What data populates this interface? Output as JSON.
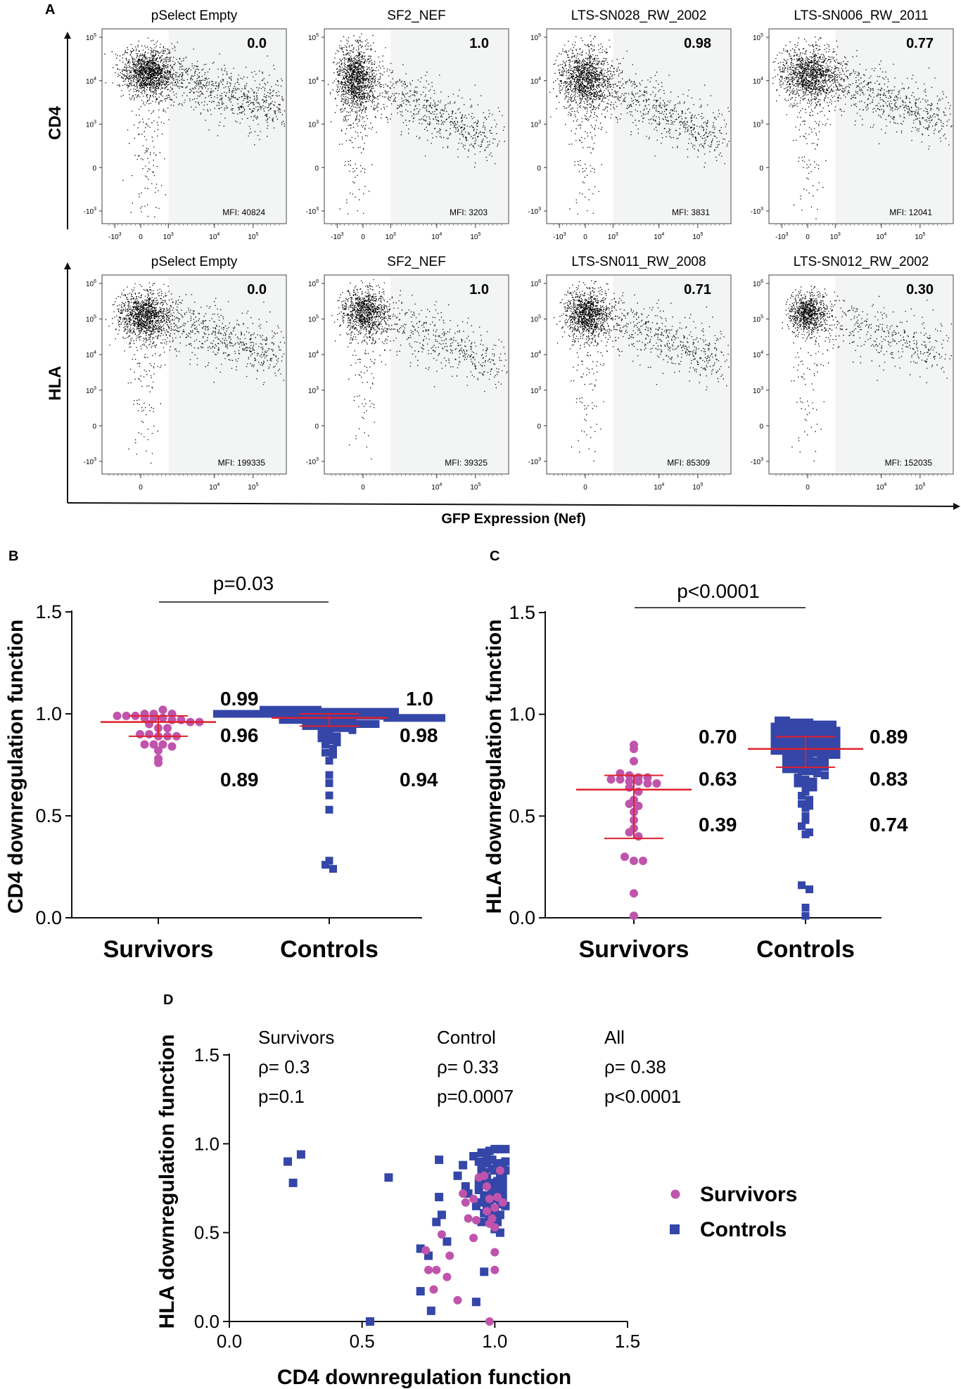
{
  "panels": {
    "A": "A",
    "B": "B",
    "C": "C",
    "D": "D"
  },
  "panel_a": {
    "row_axis_labels": [
      "CD4",
      "HLA"
    ],
    "x_axis_label": "GFP Expression (Nef)",
    "cd4_y_ticks": [
      "10^5",
      "10^4",
      "10^3",
      "0",
      "-10^3"
    ],
    "hla_y_ticks": [
      "10^6",
      "10^5",
      "10^4",
      "10^3",
      "0",
      "-10^3"
    ],
    "cd4_x_ticks": [
      "-10^3",
      "0",
      "10^3",
      "10^4",
      "10^5"
    ],
    "hla_x_ticks": [
      "0",
      "10^4",
      "10^5"
    ],
    "cd4_plots": [
      {
        "title": "pSelect Empty",
        "score": "0.0",
        "mfi": "MFI: 40824"
      },
      {
        "title": "SF2_NEF",
        "score": "1.0",
        "mfi": "MFI: 3203"
      },
      {
        "title": "LTS-SN028_RW_2002",
        "score": "0.98",
        "mfi": "MFI: 3831"
      },
      {
        "title": "LTS-SN006_RW_2011",
        "score": "0.77",
        "mfi": "MFI: 12041"
      }
    ],
    "hla_plots": [
      {
        "title": "pSelect Empty",
        "score": "0.0",
        "mfi": "MFI: 199335"
      },
      {
        "title": "SF2_NEF",
        "score": "1.0",
        "mfi": "MFI: 39325"
      },
      {
        "title": "LTS-SN011_RW_2008",
        "score": "0.71",
        "mfi": "MFI: 85309"
      },
      {
        "title": "LTS-SN012_RW_2002",
        "score": "0.30",
        "mfi": "MFI: 152035"
      }
    ]
  },
  "colors": {
    "survivors": "#c054ac",
    "controls": "#3446a8",
    "median_line": "#e0202a",
    "gate": "#f3f5f4"
  },
  "chart_data": [
    {
      "panel": "B",
      "type": "scatter",
      "ylabel": "CD4 downregulation function",
      "ylim": [
        0,
        1.5
      ],
      "yticks": [
        "0.0",
        "0.5",
        "1.0",
        "1.5"
      ],
      "categories": [
        "Survivors",
        "Controls"
      ],
      "pvalue": "p=0.03",
      "series": [
        {
          "name": "Survivors",
          "marker": "circle",
          "median": 0.96,
          "q1": 0.89,
          "q3": 0.99,
          "stat_labels": [
            "0.99",
            "0.96",
            "0.89"
          ],
          "values": [
            1.0,
            1.0,
            0.99,
            0.99,
            0.99,
            0.98,
            0.98,
            0.98,
            0.97,
            0.97,
            1.02,
            1.0,
            0.96,
            0.96,
            0.95,
            0.93,
            0.93,
            0.9,
            0.9,
            0.89,
            0.89,
            0.89,
            0.85,
            0.85,
            0.85,
            0.84,
            0.82,
            0.78,
            0.76
          ]
        },
        {
          "name": "Controls",
          "marker": "square",
          "median": 0.98,
          "q1": 0.94,
          "q3": 1.0,
          "stat_labels": [
            "1.0",
            "0.98",
            "0.94"
          ],
          "values": [
            1.02,
            1.02,
            1.02,
            1.02,
            1.02,
            1.02,
            1.02,
            1.02,
            1.01,
            1.01,
            1.01,
            1.01,
            1.01,
            1.01,
            1.01,
            1.01,
            1.01,
            1.01,
            1.0,
            1.0,
            1.0,
            1.0,
            1.0,
            1.0,
            1.0,
            1.0,
            1.0,
            1.0,
            1.0,
            1.0,
            0.99,
            0.99,
            0.99,
            0.99,
            0.99,
            0.99,
            0.99,
            0.99,
            0.99,
            0.99,
            0.98,
            0.98,
            0.98,
            0.98,
            0.98,
            0.98,
            0.98,
            0.98,
            0.97,
            0.97,
            0.97,
            0.97,
            0.97,
            0.97,
            0.96,
            0.96,
            0.96,
            0.96,
            0.95,
            0.95,
            0.95,
            0.94,
            0.94,
            0.94,
            0.93,
            0.93,
            0.93,
            0.92,
            0.91,
            0.9,
            0.89,
            0.88,
            0.87,
            0.86,
            0.85,
            0.83,
            0.81,
            0.8,
            0.77,
            0.7,
            0.66,
            0.6,
            0.53,
            0.28,
            0.26,
            0.24
          ]
        }
      ]
    },
    {
      "panel": "C",
      "type": "scatter",
      "ylabel": "HLA downregulation function",
      "ylim": [
        0,
        1.5
      ],
      "yticks": [
        "0.0",
        "0.5",
        "1.0",
        "1.5"
      ],
      "categories": [
        "Survivors",
        "Controls"
      ],
      "pvalue": "p<0.0001",
      "series": [
        {
          "name": "Survivors",
          "marker": "circle",
          "median": 0.63,
          "q1": 0.39,
          "q3": 0.7,
          "stat_labels": [
            "0.70",
            "0.63",
            "0.39"
          ],
          "values": [
            0.85,
            0.83,
            0.77,
            0.71,
            0.7,
            0.69,
            0.69,
            0.68,
            0.68,
            0.67,
            0.67,
            0.66,
            0.66,
            0.64,
            0.62,
            0.58,
            0.56,
            0.55,
            0.52,
            0.48,
            0.44,
            0.42,
            0.4,
            0.3,
            0.28,
            0.28,
            0.12,
            0.01
          ]
        },
        {
          "name": "Controls",
          "marker": "square",
          "median": 0.83,
          "q1": 0.74,
          "q3": 0.89,
          "stat_labels": [
            "0.89",
            "0.83",
            "0.74"
          ],
          "values": [
            0.97,
            0.97,
            0.96,
            0.96,
            0.96,
            0.95,
            0.95,
            0.95,
            0.94,
            0.94,
            0.94,
            0.93,
            0.93,
            0.93,
            0.92,
            0.92,
            0.92,
            0.91,
            0.91,
            0.91,
            0.9,
            0.9,
            0.9,
            0.89,
            0.89,
            0.89,
            0.88,
            0.88,
            0.88,
            0.87,
            0.87,
            0.87,
            0.86,
            0.86,
            0.86,
            0.85,
            0.85,
            0.85,
            0.84,
            0.84,
            0.84,
            0.83,
            0.83,
            0.83,
            0.82,
            0.82,
            0.82,
            0.81,
            0.81,
            0.81,
            0.8,
            0.8,
            0.8,
            0.79,
            0.79,
            0.78,
            0.78,
            0.77,
            0.77,
            0.76,
            0.76,
            0.75,
            0.75,
            0.74,
            0.74,
            0.73,
            0.73,
            0.72,
            0.72,
            0.71,
            0.7,
            0.69,
            0.68,
            0.67,
            0.66,
            0.65,
            0.64,
            0.62,
            0.6,
            0.58,
            0.56,
            0.55,
            0.54,
            0.5,
            0.48,
            0.45,
            0.42,
            0.41,
            0.16,
            0.14,
            0.05,
            0.01
          ]
        }
      ]
    },
    {
      "panel": "D",
      "type": "scatter",
      "xlabel": "CD4 downregulation function",
      "ylabel": "HLA downregulation function",
      "xlim": [
        0,
        1.5
      ],
      "ylim": [
        0,
        1.5
      ],
      "xticks": [
        "0.0",
        "0.5",
        "1.0",
        "1.5"
      ],
      "yticks": [
        "0.0",
        "0.5",
        "1.0",
        "1.5"
      ],
      "legend": [
        "Survivors",
        "Controls"
      ],
      "annotations": [
        {
          "title": "Survivors",
          "rho": "ρ= 0.3",
          "p": "p=0.1"
        },
        {
          "title": "Control",
          "rho": "ρ= 0.33",
          "p": "p=0.0007"
        },
        {
          "title": "All",
          "rho": "ρ= 0.38",
          "p": "p<0.0001"
        }
      ],
      "series": [
        {
          "name": "Controls",
          "marker": "square",
          "points": [
            [
              0.22,
              0.9
            ],
            [
              0.27,
              0.94
            ],
            [
              0.24,
              0.78
            ],
            [
              0.6,
              0.81
            ],
            [
              0.53,
              0.0
            ],
            [
              0.79,
              0.91
            ],
            [
              0.72,
              0.41
            ],
            [
              0.75,
              0.37
            ],
            [
              0.76,
              0.06
            ],
            [
              0.72,
              0.17
            ],
            [
              0.79,
              0.7
            ],
            [
              0.8,
              0.6
            ],
            [
              0.78,
              0.56
            ],
            [
              0.82,
              0.45
            ],
            [
              0.88,
              0.88
            ],
            [
              0.86,
              0.82
            ],
            [
              0.89,
              0.76
            ],
            [
              0.9,
              0.72
            ],
            [
              0.93,
              0.65
            ],
            [
              0.95,
              0.56
            ],
            [
              0.96,
              0.28
            ],
            [
              0.93,
              0.11
            ],
            [
              0.92,
              0.93
            ],
            [
              0.94,
              0.9
            ],
            [
              0.95,
              0.87
            ],
            [
              0.96,
              0.84
            ],
            [
              0.97,
              0.81
            ],
            [
              0.98,
              0.78
            ],
            [
              0.99,
              0.75
            ],
            [
              1.0,
              0.72
            ],
            [
              1.01,
              0.69
            ],
            [
              1.02,
              0.66
            ],
            [
              0.95,
              0.95
            ],
            [
              0.97,
              0.93
            ],
            [
              0.99,
              0.91
            ],
            [
              1.01,
              0.89
            ],
            [
              1.03,
              0.87
            ],
            [
              0.96,
              0.79
            ],
            [
              0.98,
              0.77
            ],
            [
              1.0,
              0.85
            ],
            [
              1.02,
              0.83
            ],
            [
              0.94,
              0.74
            ],
            [
              0.96,
              0.71
            ],
            [
              0.98,
              0.68
            ],
            [
              1.0,
              0.63
            ],
            [
              1.02,
              0.6
            ],
            [
              1.04,
              0.9
            ],
            [
              1.04,
              0.97
            ],
            [
              1.02,
              0.97
            ],
            [
              1.0,
              0.97
            ],
            [
              0.98,
              0.96
            ],
            [
              0.97,
              0.89
            ],
            [
              0.99,
              0.86
            ],
            [
              1.01,
              0.79
            ],
            [
              1.03,
              0.77
            ],
            [
              1.03,
              0.81
            ],
            [
              1.04,
              0.85
            ],
            [
              0.95,
              0.67
            ],
            [
              0.97,
              0.64
            ],
            [
              0.99,
              0.59
            ],
            [
              1.01,
              0.56
            ],
            [
              1.03,
              0.73
            ],
            [
              0.96,
              0.61
            ],
            [
              0.98,
              0.58
            ],
            [
              1.0,
              0.52
            ],
            [
              1.02,
              0.5
            ],
            [
              0.94,
              0.78
            ],
            [
              0.95,
              0.83
            ],
            [
              0.99,
              0.72
            ],
            [
              1.01,
              0.75
            ],
            [
              1.03,
              0.69
            ],
            [
              1.04,
              0.65
            ]
          ]
        },
        {
          "name": "Survivors",
          "marker": "circle",
          "points": [
            [
              0.74,
              0.4
            ],
            [
              0.75,
              0.29
            ],
            [
              0.78,
              0.29
            ],
            [
              0.77,
              0.18
            ],
            [
              0.8,
              0.49
            ],
            [
              0.83,
              0.37
            ],
            [
              0.82,
              0.25
            ],
            [
              0.86,
              0.12
            ],
            [
              0.88,
              0.72
            ],
            [
              0.89,
              0.67
            ],
            [
              0.92,
              0.69
            ],
            [
              0.9,
              0.58
            ],
            [
              0.93,
              0.57
            ],
            [
              0.92,
              0.47
            ],
            [
              0.94,
              0.81
            ],
            [
              0.96,
              0.82
            ],
            [
              0.97,
              0.76
            ],
            [
              0.98,
              0.69
            ],
            [
              0.97,
              0.62
            ],
            [
              0.99,
              0.58
            ],
            [
              1.0,
              0.64
            ],
            [
              1.01,
              0.7
            ],
            [
              1.0,
              0.53
            ],
            [
              1.0,
              0.39
            ],
            [
              1.0,
              0.29
            ],
            [
              0.98,
              0.0
            ],
            [
              1.02,
              0.85
            ],
            [
              1.03,
              0.67
            ],
            [
              0.98,
              0.55
            ]
          ]
        }
      ]
    }
  ]
}
